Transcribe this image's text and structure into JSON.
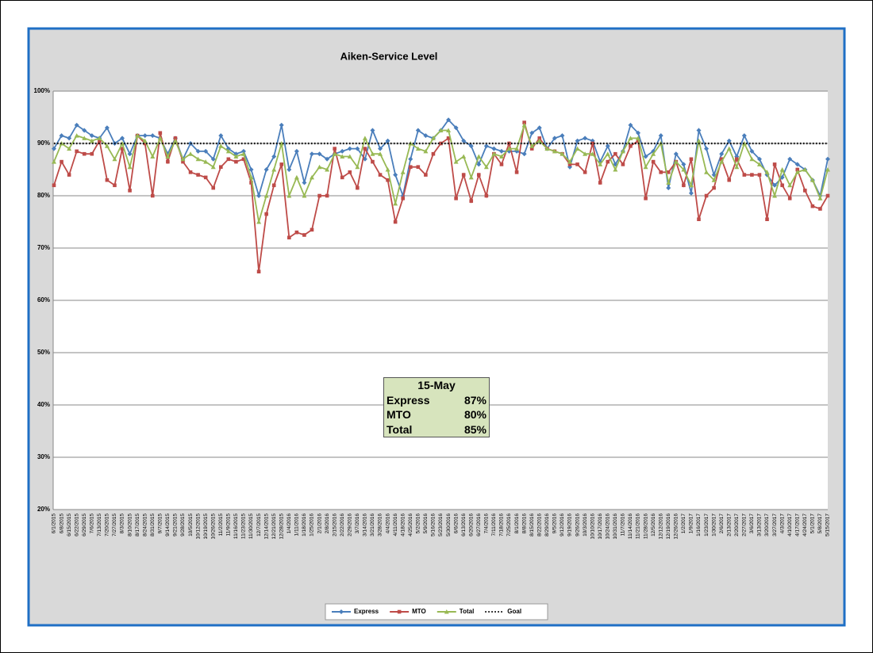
{
  "chart_data": {
    "type": "line",
    "title": "Aiken-Service Level",
    "x": [
      "6/1/2015",
      "6/8/2015",
      "6/15/2015",
      "6/22/2015",
      "6/29/2015",
      "7/6/2015",
      "7/13/2015",
      "7/20/2015",
      "7/27/2015",
      "8/3/2015",
      "8/10/2015",
      "8/17/2015",
      "8/24/2015",
      "8/31/2015",
      "9/7/2015",
      "9/14/2015",
      "9/21/2015",
      "9/28/2015",
      "10/5/2015",
      "10/12/2015",
      "10/19/2015",
      "10/26/2015",
      "11/2/2015",
      "11/9/2015",
      "11/16/2015",
      "11/23/2015",
      "11/30/2015",
      "12/7/2015",
      "12/14/2015",
      "12/21/2015",
      "12/28/2015",
      "1/4/2016",
      "1/11/2016",
      "1/18/2016",
      "1/25/2016",
      "2/1/2016",
      "2/8/2016",
      "2/15/2016",
      "2/22/2016",
      "2/29/2016",
      "3/7/2016",
      "3/14/2016",
      "3/21/2016",
      "3/28/2016",
      "4/4/2016",
      "4/11/2016",
      "4/18/2016",
      "4/25/2016",
      "5/2/2016",
      "5/9/2016",
      "5/16/2016",
      "5/23/2016",
      "5/30/2016",
      "6/6/2016",
      "6/13/2016",
      "6/20/2016",
      "6/27/2016",
      "7/4/2016",
      "7/11/2016",
      "7/18/2016",
      "7/25/2016",
      "8/1/2016",
      "8/8/2016",
      "8/15/2016",
      "8/22/2016",
      "8/29/2016",
      "9/5/2016",
      "9/12/2016",
      "9/19/2016",
      "9/26/2016",
      "10/3/2016",
      "10/10/2016",
      "10/17/2016",
      "10/24/2016",
      "10/31/2016",
      "11/7/2016",
      "11/14/2016",
      "11/21/2016",
      "11/28/2016",
      "12/5/2016",
      "12/12/2016",
      "12/19/2016",
      "12/26/2016",
      "1/2/2017",
      "1/9/2017",
      "1/16/2017",
      "1/23/2017",
      "1/30/2017",
      "2/6/2017",
      "2/13/2017",
      "2/20/2017",
      "2/27/2017",
      "3/6/2017",
      "3/13/2017",
      "3/20/2017",
      "3/27/2017",
      "4/3/2017",
      "4/10/2017",
      "4/17/2017",
      "4/24/2017",
      "5/1/2017",
      "5/8/2017",
      "5/15/2017"
    ],
    "series": [
      {
        "name": "Express",
        "color": "#4a7ebb",
        "marker": "diamond",
        "values": [
          89,
          91.5,
          91,
          93.5,
          92.5,
          91.5,
          91,
          93,
          90,
          91,
          88,
          91.5,
          91.5,
          91.5,
          91,
          88,
          91,
          87,
          90,
          88.5,
          88.5,
          87,
          91.5,
          89,
          88,
          88.5,
          85,
          80,
          85,
          87.5,
          93.5,
          85,
          88.5,
          82.5,
          88,
          88,
          87,
          88,
          88.5,
          89,
          89,
          87,
          92.5,
          89,
          90.5,
          84,
          80,
          87,
          92.5,
          91.5,
          91,
          92.5,
          94.5,
          93,
          90.5,
          89.5,
          86,
          89.5,
          89,
          88.5,
          88.5,
          88.5,
          88,
          92,
          93,
          89,
          91,
          91.5,
          85.5,
          90.5,
          91,
          90.5,
          86.5,
          89.5,
          86,
          88.5,
          93.5,
          92,
          87.5,
          88.5,
          91.5,
          81.5,
          88,
          86,
          80.5,
          92.5,
          89,
          84,
          88,
          90.5,
          87.5,
          91.5,
          88.5,
          87,
          84,
          82,
          83.5,
          87,
          86,
          85,
          83,
          80,
          87
        ]
      },
      {
        "name": "MTO",
        "color": "#be4b48",
        "marker": "square",
        "values": [
          82,
          86.5,
          84,
          88.5,
          88,
          88,
          90.5,
          83,
          82,
          89,
          81,
          91.5,
          90,
          80,
          92,
          86.5,
          91,
          86.5,
          84.5,
          84,
          83.5,
          81.5,
          85.5,
          87,
          86.5,
          87,
          82.5,
          65.5,
          76.5,
          82,
          86,
          72,
          73,
          72.5,
          73.5,
          80,
          80,
          89,
          83.5,
          84.5,
          81.5,
          89,
          86.5,
          84,
          83,
          75,
          79.5,
          85.5,
          85.5,
          84,
          88,
          90,
          91,
          79.5,
          84,
          79,
          84,
          80,
          88,
          86,
          90,
          84.5,
          94,
          89,
          91,
          89,
          88.5,
          88,
          86,
          86,
          84.5,
          90,
          82.5,
          86.5,
          88,
          86,
          89.5,
          90.5,
          79.5,
          86.5,
          84.5,
          84.5,
          86.5,
          82,
          87,
          75.5,
          80,
          81.5,
          87,
          83,
          87,
          84,
          84,
          84,
          75.5,
          86,
          82,
          79.5,
          85,
          81,
          78,
          77.5,
          80
        ]
      },
      {
        "name": "Total",
        "color": "#98b954",
        "marker": "triangle",
        "values": [
          86.5,
          90,
          89,
          91.5,
          91,
          90.5,
          91,
          89.5,
          87,
          90,
          85.5,
          91.5,
          90.5,
          87.5,
          91,
          87.5,
          90.5,
          87,
          88,
          87,
          86.5,
          85.5,
          89.5,
          88.5,
          87.5,
          88,
          83.5,
          75,
          80,
          85,
          90,
          80,
          83.5,
          80,
          83.5,
          85.5,
          85,
          88,
          87.5,
          87.5,
          85.5,
          91,
          88,
          88,
          85,
          78.5,
          84.5,
          90,
          89,
          88.5,
          91,
          92.5,
          92.5,
          86.5,
          87.5,
          83.5,
          87.5,
          85.5,
          88,
          87.5,
          89,
          89,
          93.5,
          89.5,
          90.5,
          89,
          88.5,
          88,
          86.5,
          89,
          88,
          88,
          86,
          88,
          85,
          88.5,
          91,
          91,
          85.5,
          88,
          90,
          82.5,
          86.5,
          85,
          82,
          90.5,
          84.5,
          83,
          86.5,
          89,
          85.5,
          90,
          87,
          86,
          84.5,
          80,
          85,
          82,
          84.5,
          85,
          83,
          79.5,
          85
        ]
      },
      {
        "name": "Goal",
        "color": "#000000",
        "line_style": "dotted",
        "values": [
          90,
          90,
          90,
          90,
          90,
          90,
          90,
          90,
          90,
          90,
          90,
          90,
          90,
          90,
          90,
          90,
          90,
          90,
          90,
          90,
          90,
          90,
          90,
          90,
          90,
          90,
          90,
          90,
          90,
          90,
          90,
          90,
          90,
          90,
          90,
          90,
          90,
          90,
          90,
          90,
          90,
          90,
          90,
          90,
          90,
          90,
          90,
          90,
          90,
          90,
          90,
          90,
          90,
          90,
          90,
          90,
          90,
          90,
          90,
          90,
          90,
          90,
          90,
          90,
          90,
          90,
          90,
          90,
          90,
          90,
          90,
          90,
          90,
          90,
          90,
          90,
          90,
          90,
          90,
          90,
          90,
          90,
          90,
          90,
          90,
          90,
          90,
          90,
          90,
          90,
          90,
          90,
          90,
          90,
          90,
          90,
          90,
          90,
          90,
          90,
          90,
          90,
          90
        ]
      }
    ],
    "ylim": [
      20,
      100
    ],
    "yticks": [
      {
        "value": 20,
        "label": "20%"
      },
      {
        "value": 30,
        "label": "30%"
      },
      {
        "value": 40,
        "label": "40%"
      },
      {
        "value": 50,
        "label": "50%"
      },
      {
        "value": 60,
        "label": "60%"
      },
      {
        "value": 70,
        "label": "70%"
      },
      {
        "value": 80,
        "label": "80%"
      },
      {
        "value": 90,
        "label": "90%"
      },
      {
        "value": 100,
        "label": "100%"
      }
    ],
    "grid": true,
    "legend": "bottom",
    "annotation": {
      "title": "15-May",
      "rows": [
        [
          "Express",
          "87%"
        ],
        [
          "MTO",
          "80%"
        ],
        [
          "Total",
          "85%"
        ]
      ]
    }
  }
}
